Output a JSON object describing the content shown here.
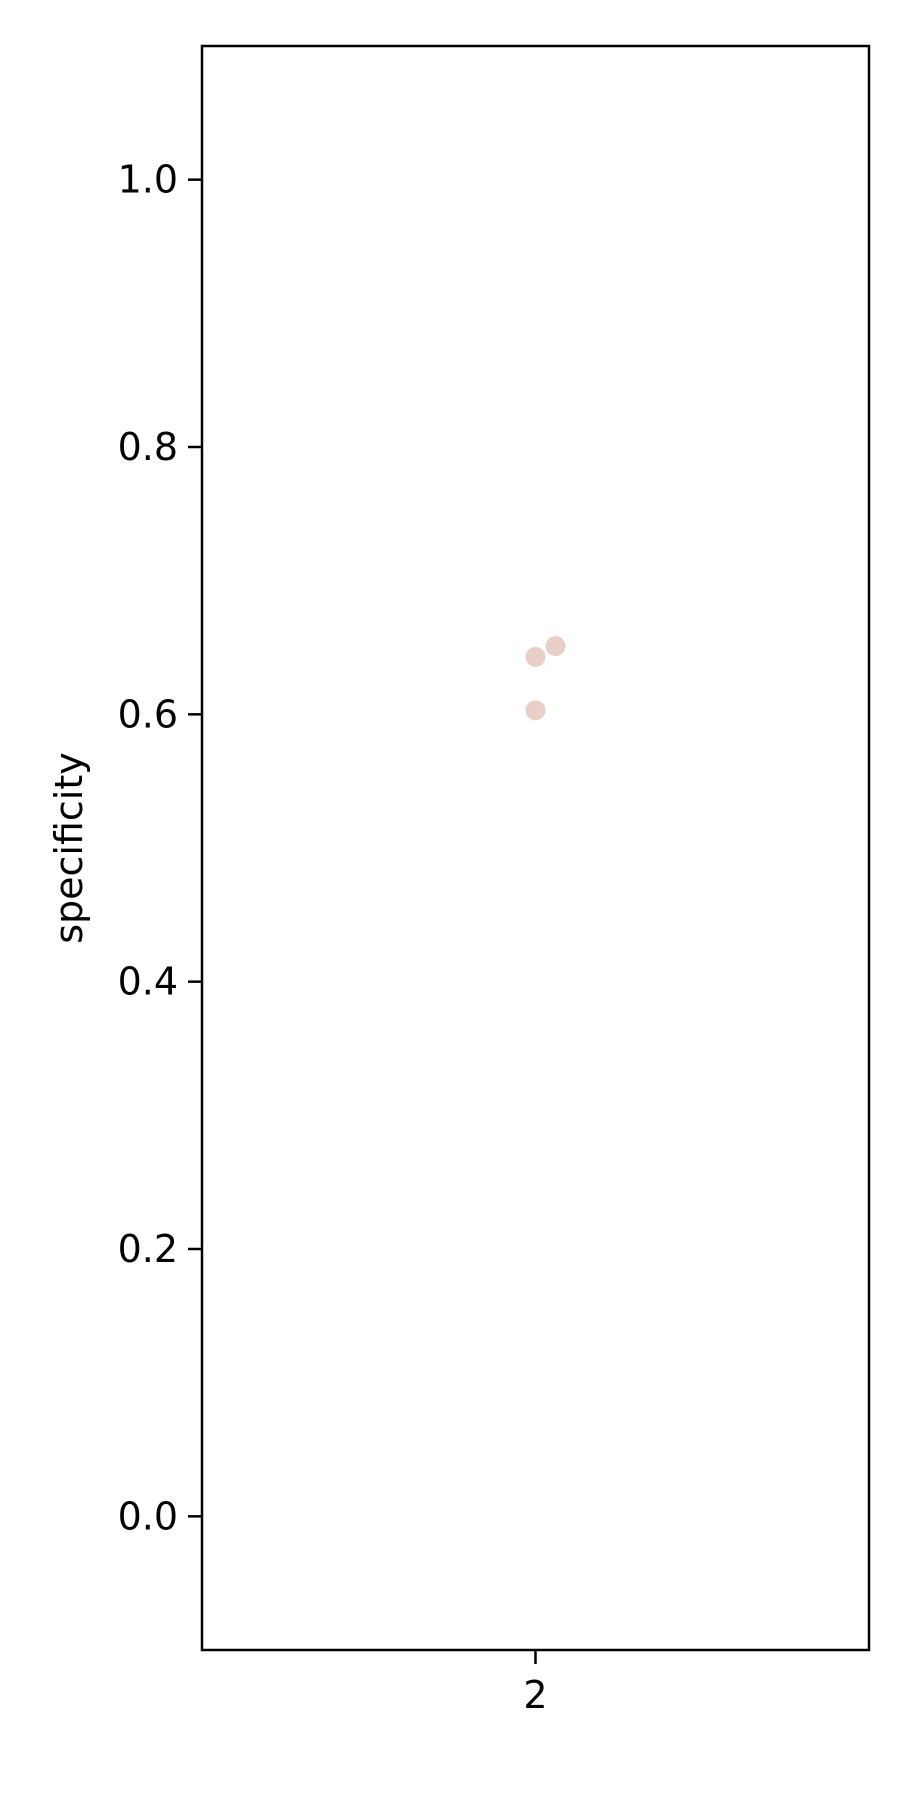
{
  "chart_data": {
    "type": "scatter",
    "title": "",
    "xlabel": "",
    "ylabel": "specificity",
    "categories": [
      "2"
    ],
    "ylim": [
      -0.1,
      1.1
    ],
    "yticks": [
      "0.0",
      "0.2",
      "0.4",
      "0.6",
      "0.8",
      "1.0"
    ],
    "grid": false,
    "point_color": "#e8cfc7",
    "series": [
      {
        "points": [
          {
            "category": "2",
            "y": 0.643
          },
          {
            "category": "2",
            "y": 0.651
          },
          {
            "category": "2",
            "y": 0.603
          }
        ]
      }
    ]
  }
}
